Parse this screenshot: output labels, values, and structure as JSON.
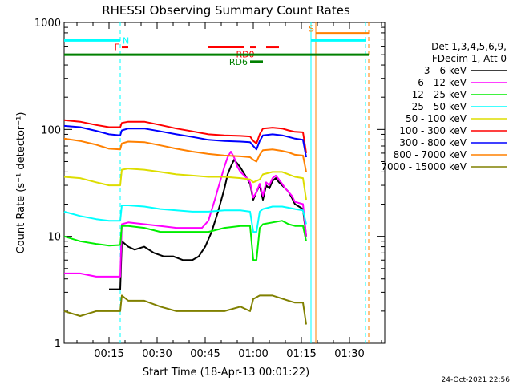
{
  "chart_data": {
    "type": "line",
    "title": "RHESSI Observing Summary Count Rates",
    "xlabel": "Start Time (18-Apr-13 00:01:22)",
    "ylabel": "Count Rate (s⁻¹ detector⁻¹)",
    "yscale": "log",
    "xlim_minutes": [
      0,
      100
    ],
    "ylim": [
      1,
      1000
    ],
    "x_ticks": [
      {
        "minute": 14,
        "label": "00:15"
      },
      {
        "minute": 29,
        "label": "00:30"
      },
      {
        "minute": 44,
        "label": "00:45"
      },
      {
        "minute": 59,
        "label": "01:00"
      },
      {
        "minute": 74,
        "label": "01:15"
      },
      {
        "minute": 89,
        "label": "01:30"
      }
    ],
    "y_ticks": [
      {
        "value": 1,
        "label": "1"
      },
      {
        "value": 10,
        "label": "10"
      },
      {
        "value": 100,
        "label": "100"
      },
      {
        "value": 1000,
        "label": "1000"
      }
    ],
    "grid": false,
    "legend_position": "right",
    "legend_header": [
      "Det 1,3,4,5,6,9,",
      "FDecim 1, Att 0"
    ],
    "series": [
      {
        "name": "3 - 6 keV",
        "color": "#000000",
        "points": [
          [
            14,
            3.2
          ],
          [
            17.5,
            3.2
          ],
          [
            18,
            9
          ],
          [
            20,
            8
          ],
          [
            22,
            7.5
          ],
          [
            25,
            8
          ],
          [
            28,
            7
          ],
          [
            31,
            6.5
          ],
          [
            34,
            6.5
          ],
          [
            37,
            6
          ],
          [
            40,
            6
          ],
          [
            42,
            6.5
          ],
          [
            44,
            8
          ],
          [
            46,
            11
          ],
          [
            48,
            17
          ],
          [
            50,
            28
          ],
          [
            51,
            38
          ],
          [
            52,
            45
          ],
          [
            53,
            52
          ],
          [
            54,
            48
          ],
          [
            55,
            44
          ],
          [
            57,
            35
          ],
          [
            58,
            31
          ],
          [
            59,
            22
          ],
          [
            60,
            26
          ],
          [
            61,
            30
          ],
          [
            62,
            22
          ],
          [
            63,
            30
          ],
          [
            64,
            28
          ],
          [
            65,
            33
          ],
          [
            66,
            35
          ],
          [
            67,
            32
          ],
          [
            68,
            30
          ],
          [
            69,
            28
          ],
          [
            70,
            26
          ],
          [
            71,
            23
          ],
          [
            72,
            20
          ],
          [
            74.5,
            18
          ],
          [
            75.5,
            10
          ]
        ]
      },
      {
        "name": "6 - 12 keV",
        "color": "#ff00ff",
        "points": [
          [
            0,
            4.5
          ],
          [
            5,
            4.5
          ],
          [
            10,
            4.2
          ],
          [
            14,
            4.2
          ],
          [
            17.5,
            4.2
          ],
          [
            18,
            13
          ],
          [
            20,
            13.5
          ],
          [
            25,
            13
          ],
          [
            30,
            12.5
          ],
          [
            35,
            12
          ],
          [
            40,
            12
          ],
          [
            43,
            12
          ],
          [
            45,
            14
          ],
          [
            47,
            22
          ],
          [
            48,
            28
          ],
          [
            50,
            45
          ],
          [
            51,
            55
          ],
          [
            52,
            62
          ],
          [
            53,
            55
          ],
          [
            54,
            45
          ],
          [
            55,
            40
          ],
          [
            57,
            35
          ],
          [
            58,
            32
          ],
          [
            59,
            23
          ],
          [
            60,
            26
          ],
          [
            61,
            31
          ],
          [
            62,
            24
          ],
          [
            63,
            32
          ],
          [
            64,
            30
          ],
          [
            65,
            35
          ],
          [
            66,
            37
          ],
          [
            67,
            34
          ],
          [
            68,
            31
          ],
          [
            69,
            28
          ],
          [
            70,
            26
          ],
          [
            71,
            24
          ],
          [
            72,
            21
          ],
          [
            74.5,
            20
          ],
          [
            75.5,
            10
          ]
        ]
      },
      {
        "name": "12 - 25 keV",
        "color": "#00ee00",
        "points": [
          [
            0,
            10
          ],
          [
            5,
            9
          ],
          [
            10,
            8.5
          ],
          [
            14,
            8.2
          ],
          [
            17.5,
            8.3
          ],
          [
            18,
            12.5
          ],
          [
            20,
            12.5
          ],
          [
            25,
            12
          ],
          [
            30,
            11
          ],
          [
            35,
            11
          ],
          [
            40,
            11
          ],
          [
            45,
            11
          ],
          [
            50,
            12
          ],
          [
            55,
            12.5
          ],
          [
            58,
            12.5
          ],
          [
            59,
            6
          ],
          [
            60,
            6
          ],
          [
            61,
            12
          ],
          [
            62,
            13
          ],
          [
            65,
            13.5
          ],
          [
            68,
            14
          ],
          [
            70,
            13
          ],
          [
            72,
            12.5
          ],
          [
            74.5,
            12.5
          ],
          [
            75.5,
            9
          ]
        ]
      },
      {
        "name": "25 - 50 keV",
        "color": "#00ffff",
        "points": [
          [
            0,
            17
          ],
          [
            5,
            15.5
          ],
          [
            10,
            14.5
          ],
          [
            14,
            14
          ],
          [
            17.5,
            14
          ],
          [
            18,
            19.5
          ],
          [
            20,
            19.5
          ],
          [
            25,
            19
          ],
          [
            30,
            18
          ],
          [
            35,
            17.5
          ],
          [
            40,
            17
          ],
          [
            45,
            17
          ],
          [
            50,
            17.5
          ],
          [
            55,
            17.5
          ],
          [
            58,
            17
          ],
          [
            59,
            11
          ],
          [
            60,
            11
          ],
          [
            61,
            17
          ],
          [
            62,
            18
          ],
          [
            65,
            19
          ],
          [
            68,
            19
          ],
          [
            70,
            18.5
          ],
          [
            72,
            18
          ],
          [
            74.5,
            17.5
          ],
          [
            75.5,
            13
          ]
        ]
      },
      {
        "name": "50 - 100 keV",
        "color": "#dddd00",
        "points": [
          [
            0,
            36
          ],
          [
            5,
            35
          ],
          [
            10,
            32
          ],
          [
            14,
            30
          ],
          [
            17.5,
            30
          ],
          [
            18,
            42
          ],
          [
            20,
            43
          ],
          [
            25,
            42
          ],
          [
            30,
            40
          ],
          [
            35,
            38
          ],
          [
            40,
            37
          ],
          [
            45,
            36
          ],
          [
            50,
            36
          ],
          [
            55,
            35
          ],
          [
            58,
            34
          ],
          [
            59,
            32
          ],
          [
            61,
            34
          ],
          [
            62,
            38
          ],
          [
            65,
            40
          ],
          [
            68,
            40
          ],
          [
            70,
            38
          ],
          [
            72,
            36
          ],
          [
            74.5,
            35
          ],
          [
            75.5,
            22
          ]
        ]
      },
      {
        "name": "100 - 300 keV",
        "color": "#ff0000",
        "points": [
          [
            0,
            122
          ],
          [
            5,
            118
          ],
          [
            10,
            110
          ],
          [
            14,
            105
          ],
          [
            17.5,
            105
          ],
          [
            18,
            115
          ],
          [
            20,
            118
          ],
          [
            25,
            118
          ],
          [
            30,
            110
          ],
          [
            35,
            102
          ],
          [
            40,
            96
          ],
          [
            45,
            90
          ],
          [
            50,
            88
          ],
          [
            55,
            87
          ],
          [
            58,
            86
          ],
          [
            59,
            78
          ],
          [
            60,
            74
          ],
          [
            61,
            90
          ],
          [
            62,
            102
          ],
          [
            65,
            104
          ],
          [
            68,
            102
          ],
          [
            70,
            98
          ],
          [
            72,
            95
          ],
          [
            74.5,
            94
          ],
          [
            75.5,
            60
          ]
        ]
      },
      {
        "name": "300 - 800 keV",
        "color": "#0000ff",
        "points": [
          [
            0,
            108
          ],
          [
            5,
            105
          ],
          [
            10,
            97
          ],
          [
            14,
            90
          ],
          [
            17.5,
            88
          ],
          [
            18,
            98
          ],
          [
            20,
            102
          ],
          [
            25,
            102
          ],
          [
            30,
            96
          ],
          [
            35,
            90
          ],
          [
            40,
            85
          ],
          [
            45,
            80
          ],
          [
            50,
            78
          ],
          [
            55,
            77
          ],
          [
            58,
            76
          ],
          [
            59,
            70
          ],
          [
            60,
            65
          ],
          [
            61,
            78
          ],
          [
            62,
            88
          ],
          [
            65,
            90
          ],
          [
            68,
            88
          ],
          [
            70,
            85
          ],
          [
            72,
            82
          ],
          [
            74.5,
            80
          ],
          [
            75.5,
            55
          ]
        ]
      },
      {
        "name": "800 - 7000 keV",
        "color": "#ff8000",
        "points": [
          [
            0,
            82
          ],
          [
            5,
            78
          ],
          [
            10,
            72
          ],
          [
            14,
            66
          ],
          [
            17.5,
            65
          ],
          [
            18,
            74
          ],
          [
            20,
            77
          ],
          [
            25,
            76
          ],
          [
            30,
            71
          ],
          [
            35,
            66
          ],
          [
            40,
            62
          ],
          [
            45,
            59
          ],
          [
            50,
            57
          ],
          [
            55,
            56
          ],
          [
            58,
            55
          ],
          [
            59,
            52
          ],
          [
            60,
            50
          ],
          [
            61,
            58
          ],
          [
            62,
            64
          ],
          [
            65,
            65
          ],
          [
            68,
            63
          ],
          [
            70,
            61
          ],
          [
            72,
            58
          ],
          [
            74.5,
            57
          ],
          [
            75.5,
            40
          ]
        ]
      },
      {
        "name": "7000 - 15000 keV",
        "color": "#808000",
        "points": [
          [
            0,
            2
          ],
          [
            5,
            1.8
          ],
          [
            10,
            2
          ],
          [
            14,
            2
          ],
          [
            17.5,
            2
          ],
          [
            18,
            2.8
          ],
          [
            20,
            2.5
          ],
          [
            25,
            2.5
          ],
          [
            30,
            2.2
          ],
          [
            35,
            2
          ],
          [
            40,
            2
          ],
          [
            45,
            2
          ],
          [
            50,
            2
          ],
          [
            55,
            2.2
          ],
          [
            58,
            2
          ],
          [
            59,
            2.6
          ],
          [
            61,
            2.8
          ],
          [
            65,
            2.8
          ],
          [
            70,
            2.5
          ],
          [
            72,
            2.4
          ],
          [
            74.5,
            2.4
          ],
          [
            75.5,
            1.5
          ]
        ]
      }
    ],
    "state_bars": [
      {
        "label": "N",
        "color": "#00ffff",
        "value": 680,
        "segments": [
          [
            0,
            17.5
          ],
          [
            77,
            94
          ]
        ]
      },
      {
        "label": "S",
        "color": "#ff8000",
        "value": 790,
        "segments": [
          [
            78.5,
            95
          ]
        ]
      },
      {
        "label": "F",
        "color": "#ff0000",
        "value": 590,
        "segments": [
          [
            18,
            20
          ]
        ]
      },
      {
        "label": "RD0",
        "color": "#ff0000",
        "value": 590,
        "segments": [
          [
            45,
            56
          ],
          [
            58,
            60
          ],
          [
            63,
            67
          ]
        ]
      },
      {
        "label": "",
        "color": "#008000",
        "value": 500,
        "segments": [
          [
            0,
            95
          ]
        ]
      },
      {
        "label": "RD6",
        "color": "#008000",
        "value": 430,
        "segments": [
          [
            58,
            62
          ]
        ]
      }
    ],
    "vertical_lines": [
      {
        "minute": 17.5,
        "color": "#00ffff",
        "style": "dashed"
      },
      {
        "minute": 77,
        "color": "#00ffff",
        "style": "solid"
      },
      {
        "minute": 78.5,
        "color": "#ff8000",
        "style": "solid"
      },
      {
        "minute": 94,
        "color": "#00ffff",
        "style": "dashed"
      },
      {
        "minute": 95,
        "color": "#ff8000",
        "style": "dashed"
      }
    ]
  },
  "footer": {
    "timestamp": "24-Oct-2021 22:56"
  }
}
